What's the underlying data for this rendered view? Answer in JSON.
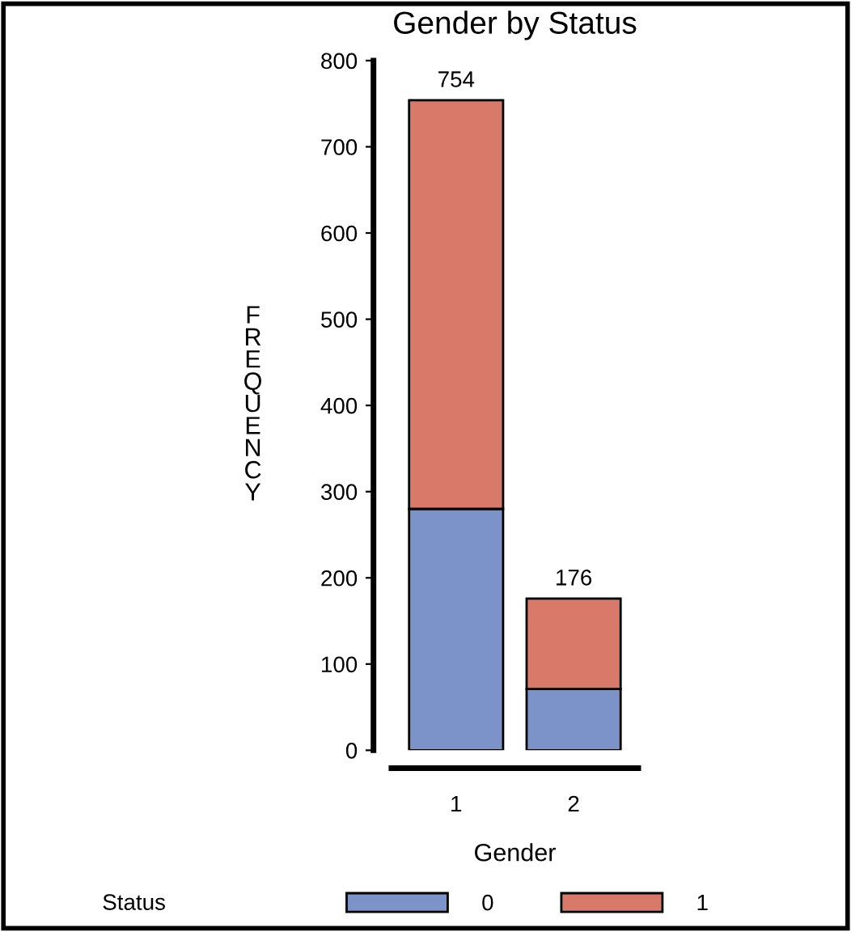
{
  "chart_data": {
    "type": "bar",
    "title": "Gender by Status",
    "xlabel": "Gender",
    "ylabel": "FREQUENCY",
    "legend_title": "Status",
    "categories": [
      "1",
      "2"
    ],
    "stacked": true,
    "series": [
      {
        "name": "0",
        "color": "#7b93c8",
        "values": [
          280,
          71
        ]
      },
      {
        "name": "1",
        "color": "#d9796a",
        "values": [
          474,
          105
        ]
      }
    ],
    "totals": [
      "754",
      "176"
    ],
    "ylim": [
      0,
      800
    ],
    "yticks": [
      0,
      100,
      200,
      300,
      400,
      500,
      600,
      700,
      800
    ],
    "grid": false,
    "legend": "bottom"
  }
}
